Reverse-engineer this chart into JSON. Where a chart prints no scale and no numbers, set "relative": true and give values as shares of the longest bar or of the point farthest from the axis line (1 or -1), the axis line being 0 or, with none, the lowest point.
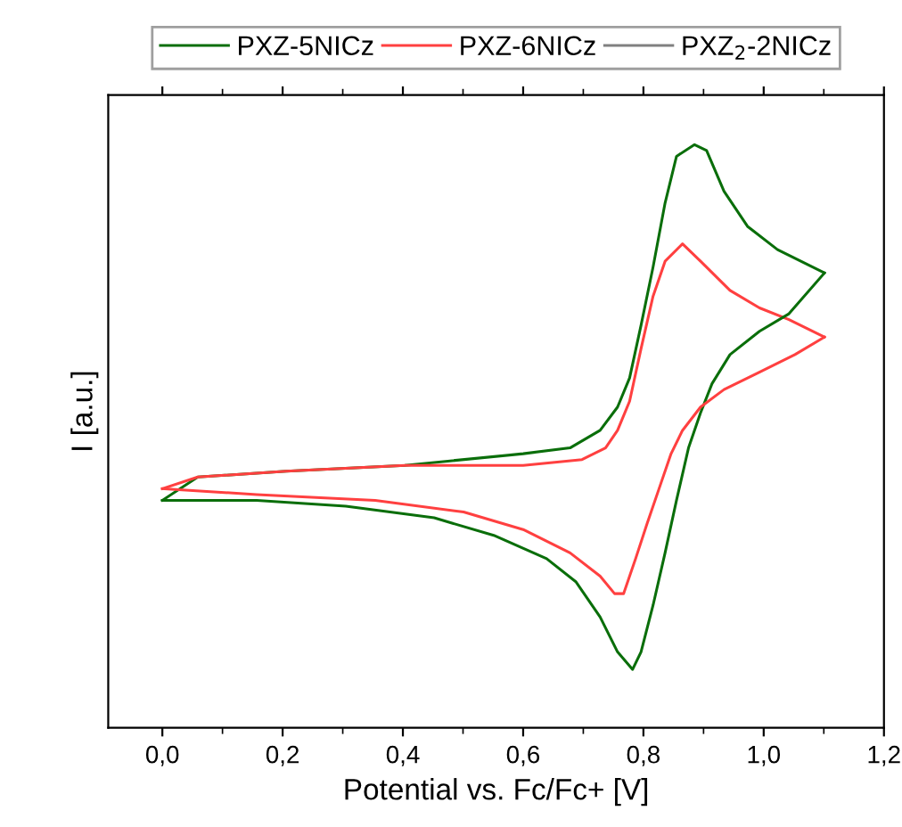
{
  "chart_data": {
    "type": "line",
    "relative": true,
    "xlabel": "Potential vs. Fc/Fc+ [V]",
    "ylabel": "I [a.u.]",
    "legend": "top",
    "grid": false,
    "xlim": [
      -0.09,
      1.2
    ],
    "xticks": [
      {
        "value": 0.0,
        "label": "0,0"
      },
      {
        "value": 0.2,
        "label": "0,2"
      },
      {
        "value": 0.4,
        "label": "0,4"
      },
      {
        "value": 0.6,
        "label": "0,6"
      },
      {
        "value": 0.8,
        "label": "0,8"
      },
      {
        "value": 1.0,
        "label": "1,0"
      },
      {
        "value": 1.2,
        "label": "1,2"
      }
    ],
    "series": [
      {
        "name": "PXZ-5NICz",
        "color": "#0a6e0a",
        "x": [
          0.0,
          0.059,
          0.206,
          0.403,
          0.6,
          0.678,
          0.728,
          0.757,
          0.777,
          0.796,
          0.816,
          0.836,
          0.855,
          0.885,
          0.905,
          0.934,
          0.973,
          1.023,
          1.101
        ],
        "values": [
          0.39,
          0.43,
          0.44,
          0.45,
          0.47,
          0.48,
          0.51,
          0.55,
          0.6,
          0.69,
          0.79,
          0.9,
          0.98,
          1.0,
          0.99,
          0.92,
          0.86,
          0.82,
          0.78
        ]
      },
      {
        "name": "PXZ-6NICz",
        "color": "#ff4040",
        "x": [
          0.0,
          0.059,
          0.206,
          0.403,
          0.6,
          0.698,
          0.737,
          0.757,
          0.777,
          0.796,
          0.816,
          0.836,
          0.865,
          0.895,
          0.944,
          0.993,
          1.042,
          1.101
        ],
        "values": [
          0.41,
          0.43,
          0.44,
          0.45,
          0.45,
          0.46,
          0.48,
          0.51,
          0.56,
          0.65,
          0.74,
          0.8,
          0.83,
          0.8,
          0.75,
          0.72,
          0.7,
          0.67
        ]
      },
      {
        "name": "PXZ$_{2}$-2NICz",
        "color": "#808080"
      },
      {
        "color": "#0a6e0a",
        "x": [
          1.101,
          1.042,
          0.993,
          0.944,
          0.914,
          0.895,
          0.875,
          0.855,
          0.836,
          0.816,
          0.796,
          0.782,
          0.757,
          0.728,
          0.688,
          0.639,
          0.551,
          0.452,
          0.305,
          0.157,
          0.0
        ],
        "values": [
          0.78,
          0.71,
          0.68,
          0.64,
          0.59,
          0.54,
          0.48,
          0.39,
          0.3,
          0.21,
          0.13,
          0.1,
          0.13,
          0.19,
          0.25,
          0.29,
          0.33,
          0.36,
          0.38,
          0.39,
          0.39
        ]
      },
      {
        "color": "#ff4040",
        "x": [
          1.101,
          1.052,
          0.993,
          0.934,
          0.895,
          0.865,
          0.846,
          0.826,
          0.806,
          0.787,
          0.767,
          0.752,
          0.728,
          0.678,
          0.6,
          0.501,
          0.354,
          0.157,
          0.0
        ],
        "values": [
          0.67,
          0.64,
          0.61,
          0.58,
          0.55,
          0.51,
          0.47,
          0.41,
          0.35,
          0.29,
          0.23,
          0.23,
          0.26,
          0.3,
          0.34,
          0.37,
          0.39,
          0.4,
          0.41
        ]
      }
    ]
  }
}
